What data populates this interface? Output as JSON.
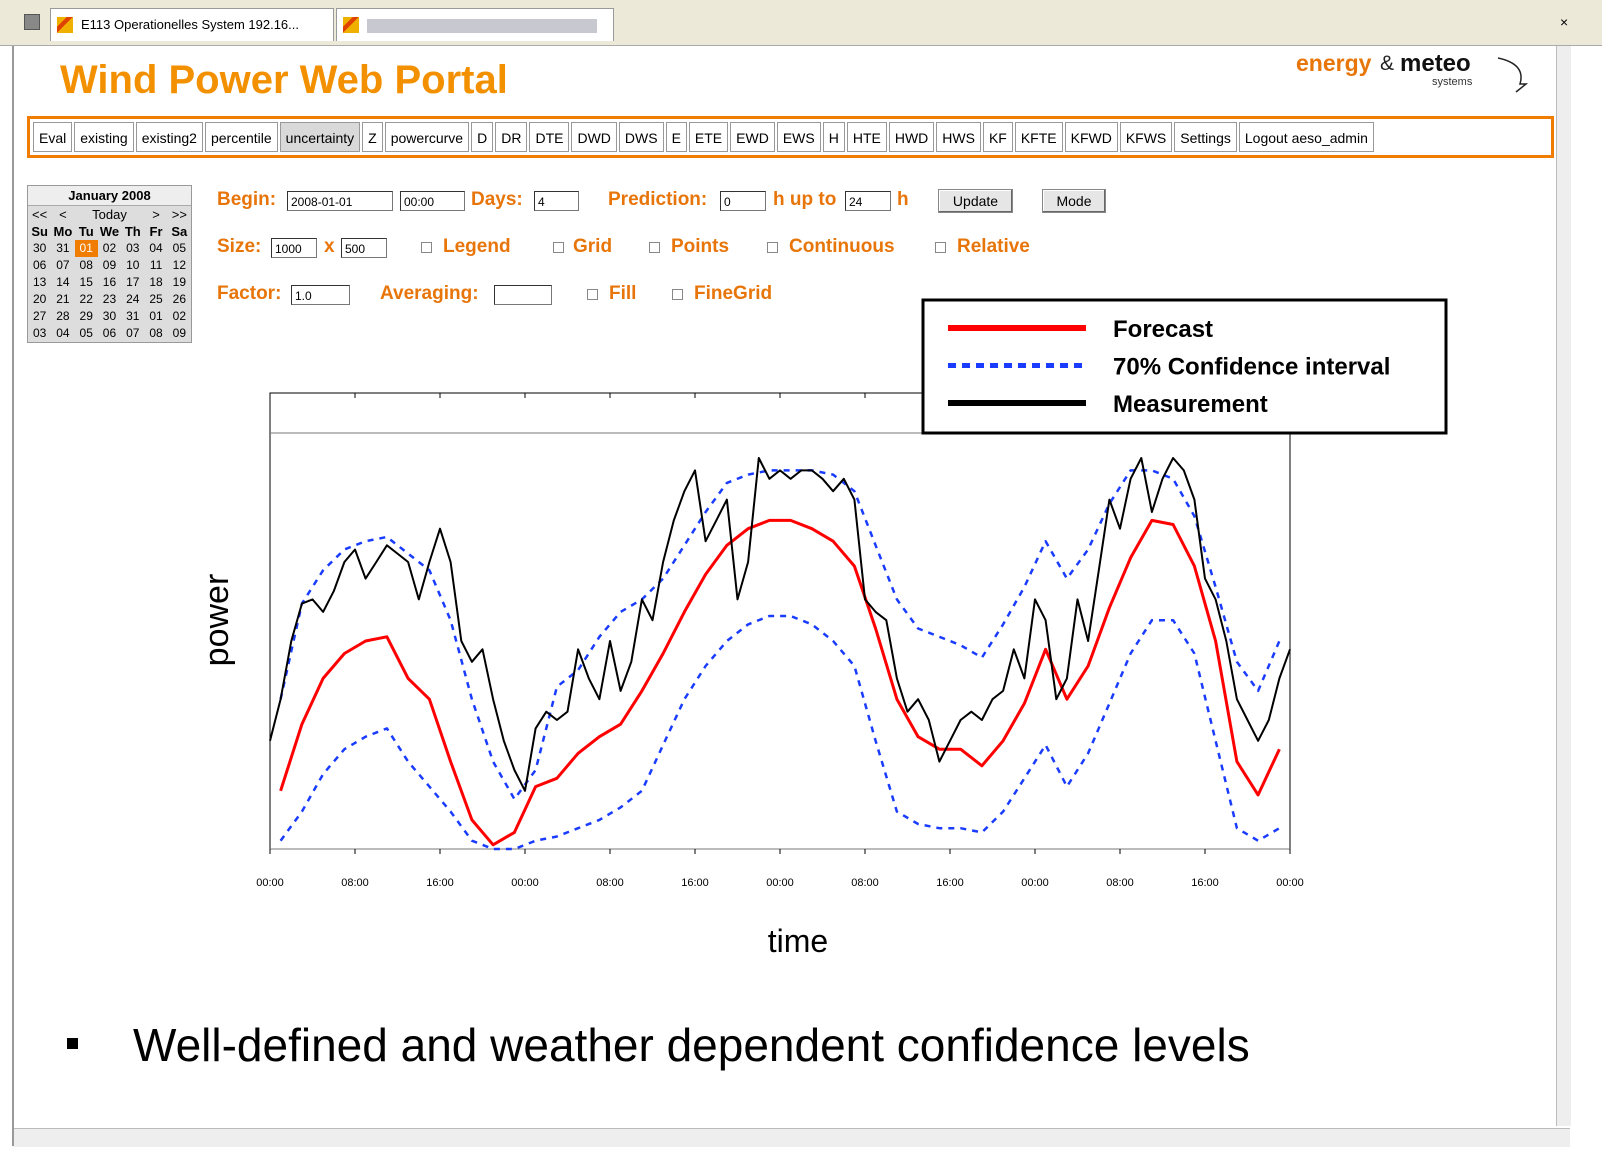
{
  "browser": {
    "tab": "E113 Operationelles System 192.16..."
  },
  "header": {
    "title": "Wind Power Web Portal",
    "logo": {
      "word1": "energy",
      "amp": "&",
      "word2": "meteo",
      "sub": "systems"
    }
  },
  "nav": {
    "items": [
      "Eval",
      "existing",
      "existing2",
      "percentile",
      "uncertainty",
      "Z",
      "powercurve",
      "D",
      "DR",
      "DTE",
      "DWD",
      "DWS",
      "E",
      "ETE",
      "EWD",
      "EWS",
      "H",
      "HTE",
      "HWD",
      "HWS",
      "KF",
      "KFTE",
      "KFWD",
      "KFWS",
      "Settings",
      "Logout aeso_admin"
    ],
    "active": 4
  },
  "calendar": {
    "month": "January 2008",
    "nav": [
      "<<",
      "<",
      "Today",
      ">",
      ">>"
    ],
    "weekdays": [
      "Su",
      "Mo",
      "Tu",
      "We",
      "Th",
      "Fr",
      "Sa"
    ],
    "weeks": [
      [
        "30",
        "31",
        "01",
        "02",
        "03",
        "04",
        "05"
      ],
      [
        "06",
        "07",
        "08",
        "09",
        "10",
        "11",
        "12"
      ],
      [
        "13",
        "14",
        "15",
        "16",
        "17",
        "18",
        "19"
      ],
      [
        "20",
        "21",
        "22",
        "23",
        "24",
        "25",
        "26"
      ],
      [
        "27",
        "28",
        "29",
        "30",
        "31",
        "01",
        "02"
      ],
      [
        "03",
        "04",
        "05",
        "06",
        "07",
        "08",
        "09"
      ]
    ],
    "selected": [
      0,
      2
    ]
  },
  "form": {
    "begin_label": "Begin:",
    "begin_date": "2008-01-01",
    "begin_time": "00:00",
    "days_label": "Days:",
    "days": "4",
    "prediction_label": "Prediction:",
    "prediction_from": "0",
    "up_to_label": "h up to",
    "prediction_to": "24",
    "hour_unit": "h",
    "update": "Update",
    "mode": "Mode",
    "size_label": "Size:",
    "width": "1000",
    "by": "x",
    "height": "500",
    "factor_label": "Factor:",
    "factor": "1.0",
    "averaging_label": "Averaging:",
    "checkboxes": [
      "Legend",
      "Grid",
      "Points",
      "Continuous",
      "Relative",
      "Fill",
      "FineGrid"
    ]
  },
  "chart_data": {
    "type": "line",
    "xlabel": "time",
    "ylabel": "power",
    "xlim": [
      0,
      96
    ],
    "ylim": [
      0,
      100
    ],
    "xticks": [
      {
        "value": 0,
        "label": "00:00"
      },
      {
        "value": 8,
        "label": "08:00"
      },
      {
        "value": 16,
        "label": "16:00"
      },
      {
        "value": 24,
        "label": "00:00"
      },
      {
        "value": 32,
        "label": "08:00"
      },
      {
        "value": 40,
        "label": "16:00"
      },
      {
        "value": 48,
        "label": "00:00"
      },
      {
        "value": 56,
        "label": "08:00"
      },
      {
        "value": 64,
        "label": "16:00"
      },
      {
        "value": 72,
        "label": "00:00"
      },
      {
        "value": 80,
        "label": "08:00"
      },
      {
        "value": 88,
        "label": "16:00"
      },
      {
        "value": 96,
        "label": "00:00"
      }
    ],
    "legend": "top-right",
    "series": [
      {
        "name": "Forecast",
        "color": "#ff0000",
        "style": "solid",
        "x": [
          1,
          3,
          5,
          7,
          9,
          11,
          13,
          15,
          17,
          19,
          21,
          23,
          25,
          27,
          29,
          31,
          33,
          35,
          37,
          39,
          41,
          43,
          45,
          47,
          49,
          51,
          53,
          55,
          57,
          59,
          61,
          63,
          65,
          67,
          69,
          71,
          73,
          75,
          77,
          79,
          81,
          83,
          85,
          87,
          89,
          91,
          93,
          95
        ],
        "values": [
          14,
          30,
          41,
          47,
          50,
          51,
          41,
          36,
          21,
          7,
          1,
          4,
          15,
          17,
          23,
          27,
          30,
          38,
          47,
          57,
          66,
          73,
          77,
          79,
          79,
          77,
          74,
          68,
          53,
          36,
          27,
          24,
          24,
          20,
          26,
          35,
          48,
          36,
          44,
          58,
          70,
          79,
          78,
          68,
          50,
          21,
          13,
          24
        ]
      },
      {
        "name": "70% Confidence interval",
        "color": "#1a3cff",
        "style": "dashed",
        "x": [
          1,
          3,
          5,
          7,
          9,
          11,
          13,
          15,
          17,
          19,
          21,
          23,
          25,
          27,
          29,
          31,
          33,
          35,
          37,
          39,
          41,
          43,
          45,
          47,
          49,
          51,
          53,
          55,
          57,
          59,
          61,
          63,
          65,
          67,
          69,
          71,
          73,
          75,
          77,
          79,
          81,
          83,
          85,
          87,
          89,
          91,
          93,
          95
        ],
        "upper": [
          36,
          59,
          67,
          72,
          74,
          75,
          71,
          67,
          55,
          36,
          21,
          12,
          19,
          39,
          43,
          51,
          57,
          60,
          65,
          73,
          81,
          88,
          90,
          91,
          91,
          91,
          90,
          86,
          73,
          60,
          53,
          51,
          49,
          46,
          54,
          63,
          74,
          65,
          72,
          83,
          91,
          91,
          89,
          80,
          63,
          45,
          38,
          50
        ],
        "lower": [
          2,
          9,
          18,
          24,
          27,
          29,
          21,
          15,
          9,
          2,
          0,
          0,
          2,
          3,
          5,
          7,
          10,
          14,
          25,
          36,
          44,
          50,
          54,
          56,
          56,
          54,
          50,
          44,
          26,
          9,
          6,
          5,
          5,
          4,
          9,
          17,
          25,
          15,
          23,
          35,
          47,
          55,
          55,
          47,
          26,
          5,
          2,
          5
        ]
      },
      {
        "name": "Measurement",
        "color": "#000000",
        "style": "solid",
        "x": [
          0,
          1,
          2,
          3,
          4,
          5,
          6,
          7,
          8,
          9,
          10,
          11,
          12,
          13,
          14,
          15,
          16,
          17,
          18,
          19,
          20,
          21,
          22,
          23,
          24,
          25,
          26,
          27,
          28,
          29,
          30,
          31,
          32,
          33,
          34,
          35,
          36,
          37,
          38,
          39,
          40,
          41,
          42,
          43,
          44,
          45,
          46,
          47,
          48,
          49,
          50,
          51,
          52,
          53,
          54,
          55,
          56,
          57,
          58,
          59,
          60,
          61,
          62,
          63,
          64,
          65,
          66,
          67,
          68,
          69,
          70,
          71,
          72,
          73,
          74,
          75,
          76,
          77,
          78,
          79,
          80,
          81,
          82,
          83,
          84,
          85,
          86,
          87,
          88,
          89,
          90,
          91,
          92,
          93,
          94,
          95,
          96
        ],
        "values": [
          26,
          36,
          50,
          59,
          60,
          57,
          62,
          69,
          72,
          65,
          69,
          73,
          71,
          69,
          60,
          69,
          77,
          69,
          50,
          45,
          48,
          36,
          26,
          19,
          14,
          29,
          33,
          31,
          33,
          48,
          41,
          36,
          50,
          38,
          45,
          60,
          55,
          69,
          79,
          86,
          91,
          74,
          79,
          84,
          60,
          69,
          94,
          89,
          91,
          89,
          91,
          91,
          89,
          86,
          89,
          84,
          60,
          57,
          55,
          41,
          33,
          36,
          31,
          21,
          26,
          31,
          33,
          31,
          36,
          38,
          48,
          41,
          60,
          55,
          36,
          41,
          60,
          50,
          67,
          84,
          77,
          89,
          94,
          81,
          89,
          94,
          91,
          84,
          65,
          60,
          50,
          36,
          31,
          26,
          31,
          41,
          48
        ]
      }
    ]
  },
  "bullet": "Well-defined and weather dependent confidence levels"
}
